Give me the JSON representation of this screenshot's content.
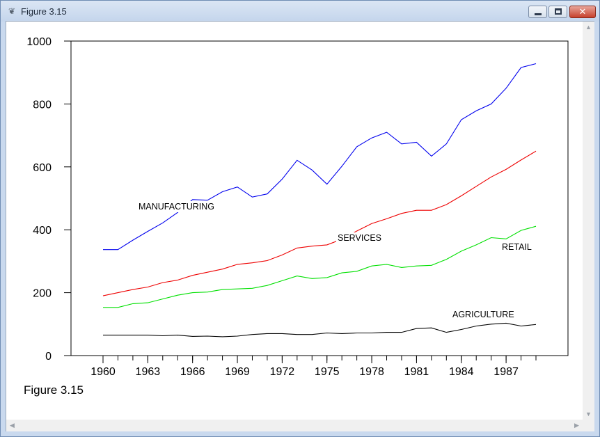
{
  "window": {
    "title": "Figure 3.15",
    "icon": "figure-icon",
    "min_glyph": "minimize-icon",
    "max_glyph": "maximize-icon",
    "close_glyph": "✕"
  },
  "caption": "Figure 3.15",
  "scroll": {
    "up": "▲",
    "down": "▼",
    "left": "◀",
    "right": "▶"
  },
  "chart_data": {
    "type": "line",
    "title": "",
    "xlabel": "",
    "ylabel": "",
    "xlim": [
      1960,
      1989
    ],
    "ylim": [
      0,
      1000
    ],
    "xticks": [
      1960,
      1963,
      1966,
      1969,
      1972,
      1975,
      1978,
      1981,
      1984,
      1987
    ],
    "yticks": [
      0,
      200,
      400,
      600,
      800,
      1000
    ],
    "grid": false,
    "x": [
      1960,
      1961,
      1962,
      1963,
      1964,
      1965,
      1966,
      1967,
      1968,
      1969,
      1970,
      1971,
      1972,
      1973,
      1974,
      1975,
      1976,
      1977,
      1978,
      1979,
      1980,
      1981,
      1982,
      1983,
      1984,
      1985,
      1986,
      1987,
      1988,
      1989
    ],
    "series": [
      {
        "name": "MANUFACTURING",
        "color": "#0000ee",
        "values": [
          337,
          337,
          367,
          395,
          422,
          455,
          496,
          494,
          521,
          536,
          504,
          514,
          561,
          621,
          590,
          545,
          602,
          664,
          692,
          710,
          673,
          678,
          634,
          673,
          750,
          778,
          800,
          850,
          916,
          928
        ]
      },
      {
        "name": "SERVICES",
        "color": "#ee0000",
        "values": [
          190,
          200,
          210,
          218,
          232,
          240,
          255,
          265,
          275,
          290,
          295,
          302,
          320,
          342,
          348,
          352,
          370,
          396,
          420,
          435,
          452,
          462,
          462,
          480,
          508,
          538,
          568,
          592,
          622,
          650
        ]
      },
      {
        "name": "RETAIL",
        "color": "#00e000",
        "values": [
          153,
          153,
          165,
          168,
          180,
          192,
          200,
          202,
          210,
          212,
          214,
          223,
          238,
          253,
          245,
          248,
          263,
          268,
          285,
          290,
          280,
          285,
          287,
          306,
          332,
          352,
          375,
          371,
          398,
          411
        ]
      },
      {
        "name": "AGRICULTURE",
        "color": "#000000",
        "values": [
          65,
          65,
          65,
          65,
          63,
          65,
          61,
          62,
          60,
          62,
          67,
          70,
          70,
          67,
          67,
          72,
          70,
          72,
          72,
          74,
          74,
          86,
          88,
          74,
          83,
          94,
          100,
          103,
          94,
          99
        ]
      }
    ],
    "annotations": [
      "MANUFACTURING",
      "SERVICES",
      "RETAIL",
      "AGRICULTURE"
    ]
  }
}
